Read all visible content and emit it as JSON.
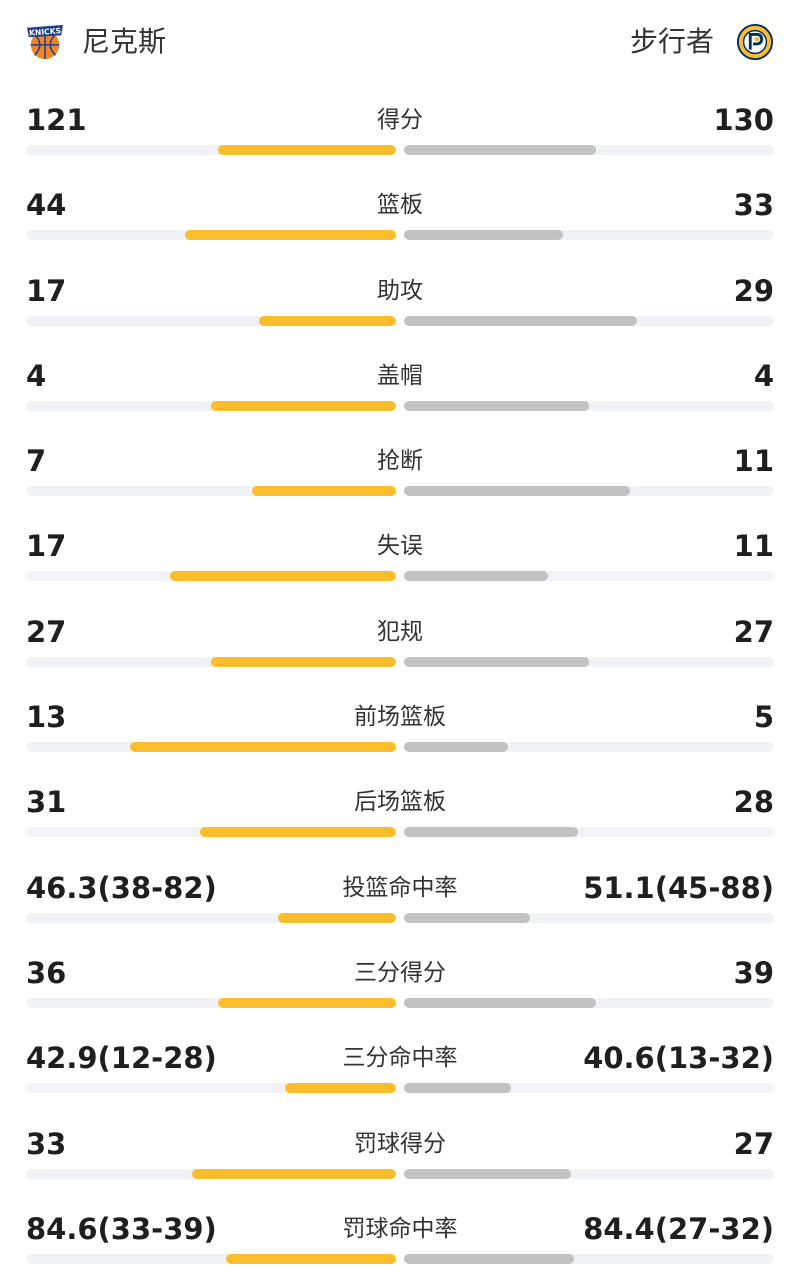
{
  "header": {
    "home": {
      "name": "尼克斯",
      "logo": "knicks-logo",
      "color": "#F58426"
    },
    "away": {
      "name": "步行者",
      "logo": "pacers-logo",
      "color": "#FDBB30"
    }
  },
  "colors": {
    "home_bar": "#fbbd2c",
    "away_bar": "#c2c2c2",
    "track": "#f1f2f5"
  },
  "stats": [
    {
      "label": "得分",
      "home": "121",
      "away": "130",
      "home_fill": 0.48,
      "away_fill": 0.52
    },
    {
      "label": "篮板",
      "home": "44",
      "away": "33",
      "home_fill": 0.57,
      "away_fill": 0.43
    },
    {
      "label": "助攻",
      "home": "17",
      "away": "29",
      "home_fill": 0.37,
      "away_fill": 0.63
    },
    {
      "label": "盖帽",
      "home": "4",
      "away": "4",
      "home_fill": 0.5,
      "away_fill": 0.5
    },
    {
      "label": "抢断",
      "home": "7",
      "away": "11",
      "home_fill": 0.39,
      "away_fill": 0.61
    },
    {
      "label": "失误",
      "home": "17",
      "away": "11",
      "home_fill": 0.61,
      "away_fill": 0.39
    },
    {
      "label": "犯规",
      "home": "27",
      "away": "27",
      "home_fill": 0.5,
      "away_fill": 0.5
    },
    {
      "label": "前场篮板",
      "home": "13",
      "away": "5",
      "home_fill": 0.72,
      "away_fill": 0.28
    },
    {
      "label": "后场篮板",
      "home": "31",
      "away": "28",
      "home_fill": 0.53,
      "away_fill": 0.47
    },
    {
      "label": "投篮命中率",
      "home": "46.3(38-82)",
      "away": "51.1(45-88)",
      "home_fill": 0.32,
      "away_fill": 0.34
    },
    {
      "label": "三分得分",
      "home": "36",
      "away": "39",
      "home_fill": 0.48,
      "away_fill": 0.52
    },
    {
      "label": "三分命中率",
      "home": "42.9(12-28)",
      "away": "40.6(13-32)",
      "home_fill": 0.3,
      "away_fill": 0.29
    },
    {
      "label": "罚球得分",
      "home": "33",
      "away": "27",
      "home_fill": 0.55,
      "away_fill": 0.45
    },
    {
      "label": "罚球命中率",
      "home": "84.6(33-39)",
      "away": "84.4(27-32)",
      "home_fill": 0.46,
      "away_fill": 0.46
    }
  ]
}
